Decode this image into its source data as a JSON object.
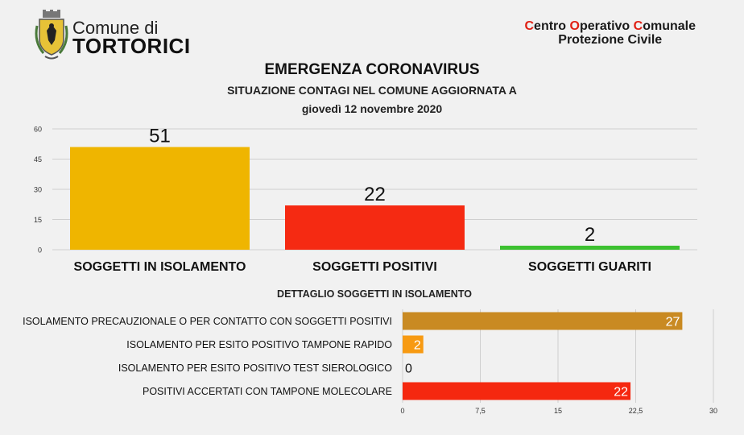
{
  "header": {
    "comune_small": "Comune di",
    "comune_big": "TORTORICI",
    "coc_parts": [
      {
        "text": "C",
        "red": true
      },
      {
        "text": "entro ",
        "red": false
      },
      {
        "text": "O",
        "red": true
      },
      {
        "text": "perativo ",
        "red": false
      },
      {
        "text": "C",
        "red": true
      },
      {
        "text": "omunale",
        "red": false
      }
    ],
    "coc_line2": "Protezione Civile",
    "title": "EMERGENZA CORONAVIRUS",
    "subtitle": "SITUAZIONE CONTAGI NEL COMUNE AGGIORNATA A",
    "date": "giovedì 12 novembre 2020"
  },
  "chart_data": [
    {
      "type": "bar",
      "orientation": "vertical",
      "categories": [
        "SOGGETTI IN ISOLAMENTO",
        "SOGGETTI POSITIVI",
        "SOGGETTI GUARITI"
      ],
      "values": [
        51,
        22,
        2
      ],
      "colors": [
        "#efb500",
        "#f52a12",
        "#3cc130"
      ],
      "yticks": [
        "0",
        "15",
        "30",
        "45",
        "60"
      ],
      "ylim": [
        0,
        60
      ],
      "grid": true
    },
    {
      "type": "bar",
      "orientation": "horizontal",
      "title": "DETTAGLIO SOGGETTI IN ISOLAMENTO",
      "categories": [
        "ISOLAMENTO PRECAUZIONALE O PER CONTATTO CON SOGGETTI POSITIVI",
        "ISOLAMENTO PER ESITO POSITIVO TAMPONE RAPIDO",
        "ISOLAMENTO PER ESITO POSITIVO TEST SIEROLOGICO",
        "POSITIVI ACCERTATI CON TAMPONE MOLECOLARE"
      ],
      "values": [
        27,
        2,
        0,
        22
      ],
      "colors": [
        "#c98a22",
        "#f79a12",
        "#999999",
        "#f5280f"
      ],
      "xticks": [
        "0",
        "7,5",
        "15",
        "22,5",
        "30"
      ],
      "xlim": [
        0,
        30
      ],
      "grid": true
    }
  ]
}
